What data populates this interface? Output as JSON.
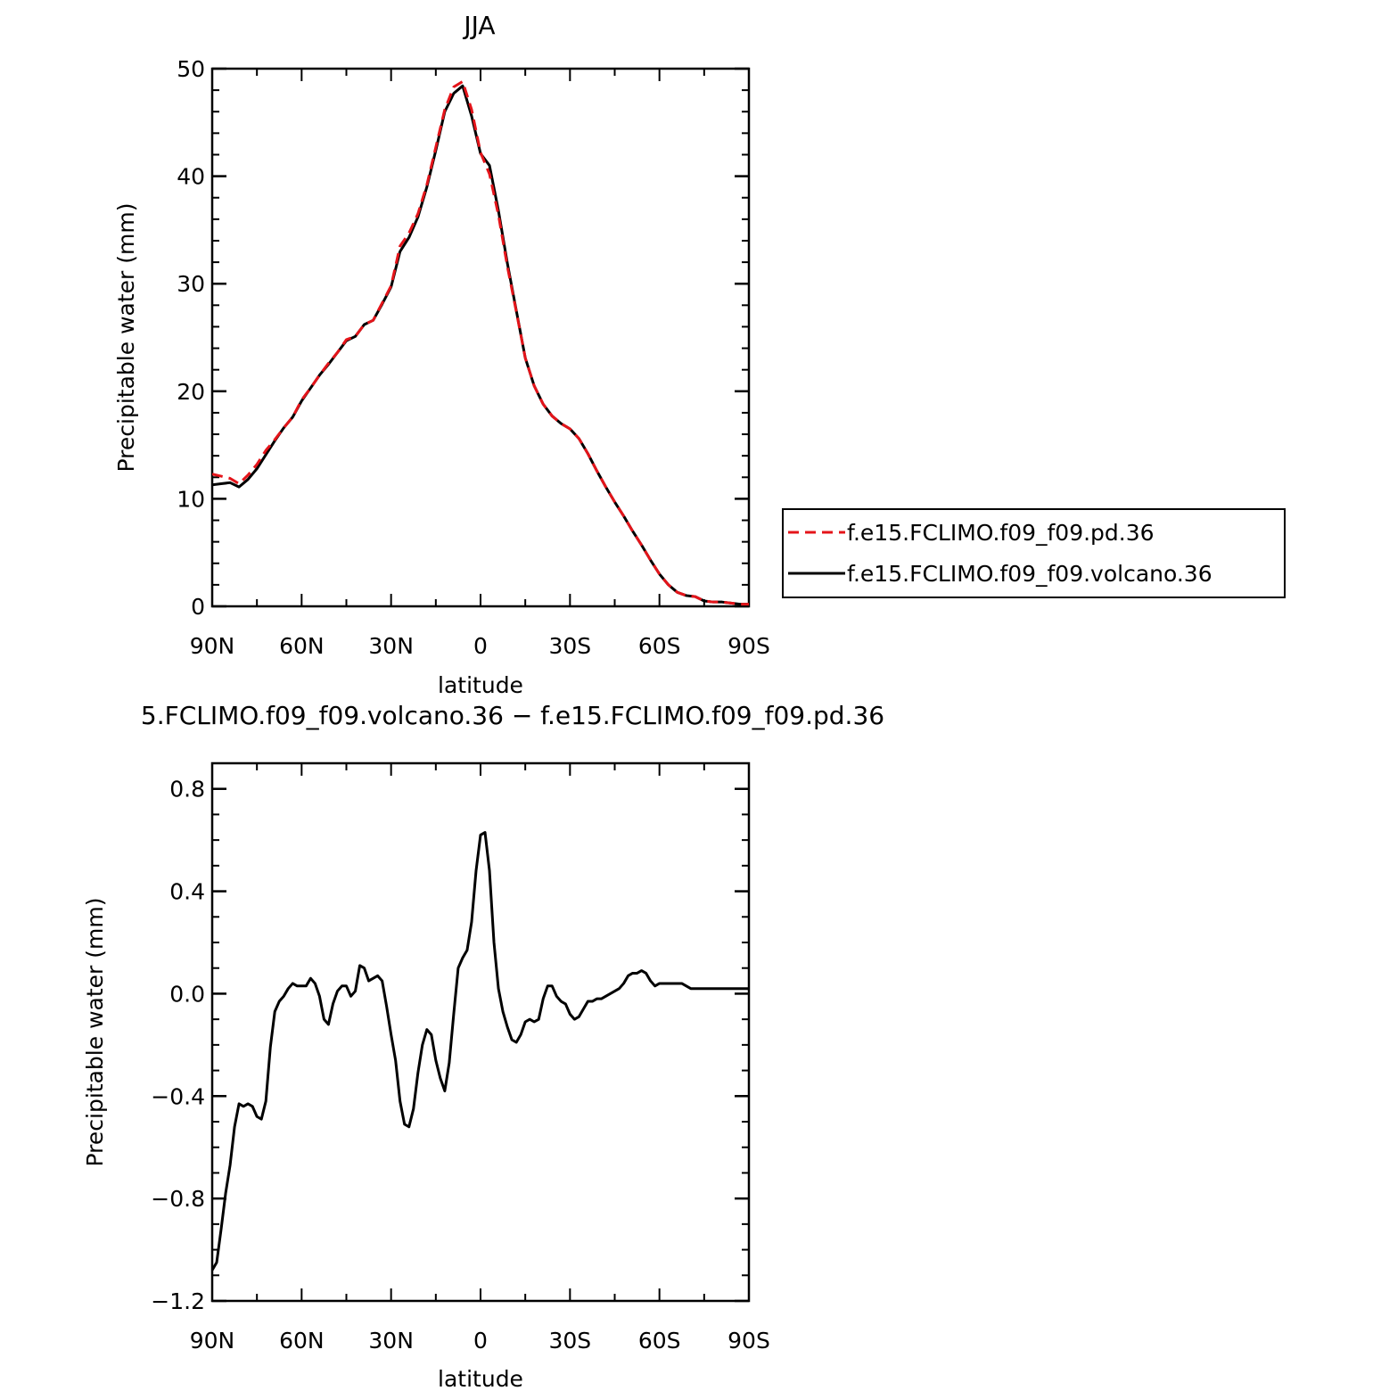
{
  "chart_data": [
    {
      "type": "line",
      "title": "JJA",
      "xlabel": "latitude",
      "ylabel": "Precipitable water (mm)",
      "xlim": [
        90,
        -90
      ],
      "ylim": [
        0,
        50
      ],
      "x_tick_values": [
        90,
        60,
        30,
        0,
        -30,
        -60,
        -90
      ],
      "x_tick_labels": [
        "90N",
        "60N",
        "30N",
        "0",
        "30S",
        "60S",
        "90S"
      ],
      "y_tick_values": [
        0,
        10,
        20,
        30,
        40,
        50
      ],
      "y_tick_labels": [
        "0",
        "10",
        "20",
        "30",
        "40",
        "50"
      ],
      "grid": false,
      "legend": {
        "position": "right-middle"
      },
      "series": [
        {
          "name": "f.e15.FCLIMO.f09_f09.pd.36",
          "color": "#e4141a",
          "style": "dashed",
          "x": [
            90,
            87,
            84,
            81,
            78,
            75,
            72,
            69,
            66,
            63,
            60,
            57,
            54,
            51,
            48,
            45,
            42,
            39,
            36,
            33,
            30,
            27,
            24,
            21,
            18,
            15,
            12,
            9,
            6,
            3,
            0,
            -3,
            -6,
            -9,
            -12,
            -15,
            -18,
            -21,
            -24,
            -27,
            -30,
            -33,
            -36,
            -39,
            -42,
            -45,
            -48,
            -51,
            -54,
            -57,
            -60,
            -63,
            -66,
            -69,
            -72,
            -75,
            -78,
            -81,
            -84,
            -87,
            -90
          ],
          "values": [
            12.3,
            12.1,
            11.9,
            11.4,
            12.2,
            13.2,
            14.5,
            15.5,
            16.6,
            17.6,
            19.2,
            20.3,
            21.5,
            22.6,
            23.6,
            24.8,
            25.1,
            26.2,
            26.6,
            28.2,
            29.8,
            33.5,
            34.7,
            36.5,
            39.2,
            42.7,
            46.2,
            48.3,
            48.8,
            46.2,
            42.2,
            40.2,
            36.4,
            31.6,
            27.4,
            23.1,
            20.5,
            18.8,
            17.7,
            17.0,
            16.5,
            15.6,
            14.2,
            12.6,
            11.1,
            9.7,
            8.4,
            7.0,
            5.7,
            4.3,
            3.0,
            2.0,
            1.3,
            1.0,
            0.9,
            0.5,
            0.4,
            0.4,
            0.3,
            0.2,
            0.2
          ]
        },
        {
          "name": "f.e15.FCLIMO.f09_f09.volcano.36",
          "color": "#000000",
          "style": "solid",
          "x": [
            90,
            87,
            84,
            81,
            78,
            75,
            72,
            69,
            66,
            63,
            60,
            57,
            54,
            51,
            48,
            45,
            42,
            39,
            36,
            33,
            30,
            27,
            24,
            21,
            18,
            15,
            12,
            9,
            6,
            3,
            0,
            -3,
            -6,
            -9,
            -12,
            -15,
            -18,
            -21,
            -24,
            -27,
            -30,
            -33,
            -36,
            -39,
            -42,
            -45,
            -48,
            -51,
            -54,
            -57,
            -60,
            -63,
            -66,
            -69,
            -72,
            -75,
            -78,
            -81,
            -84,
            -87,
            -90
          ],
          "values": [
            11.3,
            11.4,
            11.5,
            11.1,
            11.8,
            12.8,
            14.1,
            15.4,
            16.6,
            17.6,
            19.1,
            20.3,
            21.5,
            22.5,
            23.6,
            24.7,
            25.1,
            26.2,
            26.6,
            28.1,
            29.7,
            33.0,
            34.3,
            36.2,
            39.0,
            42.4,
            46.0,
            47.7,
            48.4,
            45.6,
            42.1,
            41.0,
            36.8,
            31.9,
            27.5,
            23.1,
            20.5,
            18.8,
            17.7,
            17.0,
            16.5,
            15.6,
            14.2,
            12.6,
            11.1,
            9.7,
            8.4,
            7.0,
            5.7,
            4.3,
            3.0,
            2.0,
            1.3,
            1.0,
            0.9,
            0.5,
            0.4,
            0.4,
            0.3,
            0.2,
            0.2
          ]
        }
      ]
    },
    {
      "type": "line",
      "title": "5.FCLIMO.f09_f09.volcano.36 − f.e15.FCLIMO.f09_f09.pd.36",
      "xlabel": "latitude",
      "ylabel": "Precipitable water (mm)",
      "xlim": [
        90,
        -90
      ],
      "ylim": [
        -1.2,
        0.9
      ],
      "x_tick_values": [
        90,
        60,
        30,
        0,
        -30,
        -60,
        -90
      ],
      "x_tick_labels": [
        "90N",
        "60N",
        "30N",
        "0",
        "30S",
        "60S",
        "90S"
      ],
      "y_tick_values": [
        0.8,
        0.4,
        0.0,
        -0.4,
        -0.8,
        -1.2
      ],
      "y_tick_labels": [
        "0.8",
        "0.4",
        "0.0",
        "−0.4",
        "−0.8",
        "−1.2"
      ],
      "grid": false,
      "series": [
        {
          "color": "#000000",
          "style": "solid",
          "x": [
            90,
            88.5,
            87,
            85.5,
            84,
            82.5,
            81,
            79.5,
            78,
            76.5,
            75,
            73.5,
            72,
            70.5,
            69,
            67.5,
            66,
            64.5,
            63,
            61.5,
            60,
            58.5,
            57,
            55.5,
            54,
            52.5,
            51,
            49.5,
            48,
            46.5,
            45,
            43.5,
            42,
            40.5,
            39,
            37.5,
            36,
            34.5,
            33,
            31.5,
            30,
            28.5,
            27,
            25.5,
            24,
            22.5,
            21,
            19.5,
            18,
            16.5,
            15,
            13.5,
            12,
            10.5,
            9,
            7.5,
            6,
            4.5,
            3,
            1.5,
            0,
            -1.5,
            -3,
            -4.5,
            -6,
            -7.5,
            -9,
            -10.5,
            -12,
            -13.5,
            -15,
            -16.5,
            -18,
            -19.5,
            -21,
            -22.5,
            -24,
            -25.5,
            -27,
            -28.5,
            -30,
            -31.5,
            -33,
            -34.5,
            -36,
            -37.5,
            -39,
            -40.5,
            -42,
            -43.5,
            -45,
            -46.5,
            -48,
            -49.5,
            -51,
            -52.5,
            -54,
            -55.5,
            -57,
            -58.5,
            -60,
            -61.5,
            -63,
            -64.5,
            -66,
            -67.5,
            -69,
            -70.5,
            -72,
            -73.5,
            -75,
            -76.5,
            -78,
            -79.5,
            -81,
            -82.5,
            -84,
            -85.5,
            -87,
            -88.5,
            -90
          ],
          "values": [
            -1.08,
            -1.05,
            -0.92,
            -0.78,
            -0.67,
            -0.52,
            -0.43,
            -0.44,
            -0.43,
            -0.44,
            -0.48,
            -0.49,
            -0.42,
            -0.21,
            -0.07,
            -0.03,
            -0.01,
            0.02,
            0.04,
            0.03,
            0.03,
            0.03,
            0.06,
            0.04,
            -0.01,
            -0.1,
            -0.12,
            -0.04,
            0.01,
            0.03,
            0.03,
            -0.01,
            0.01,
            0.11,
            0.1,
            0.05,
            0.06,
            0.07,
            0.05,
            -0.05,
            -0.16,
            -0.26,
            -0.42,
            -0.51,
            -0.52,
            -0.45,
            -0.31,
            -0.2,
            -0.14,
            -0.16,
            -0.26,
            -0.33,
            -0.38,
            -0.27,
            -0.08,
            0.1,
            0.14,
            0.17,
            0.28,
            0.48,
            0.62,
            0.63,
            0.48,
            0.2,
            0.02,
            -0.07,
            -0.13,
            -0.18,
            -0.19,
            -0.16,
            -0.11,
            -0.1,
            -0.11,
            -0.1,
            -0.02,
            0.03,
            0.03,
            -0.01,
            -0.03,
            -0.04,
            -0.08,
            -0.1,
            -0.09,
            -0.06,
            -0.03,
            -0.03,
            -0.02,
            -0.02,
            -0.01,
            0.0,
            0.01,
            0.02,
            0.04,
            0.07,
            0.08,
            0.08,
            0.09,
            0.08,
            0.05,
            0.03,
            0.04,
            0.04,
            0.04,
            0.04,
            0.04,
            0.04,
            0.03,
            0.02,
            0.02,
            0.02,
            0.02,
            0.02,
            0.02,
            0.02,
            0.02,
            0.02,
            0.02,
            0.02,
            0.02,
            0.02,
            0.02
          ]
        }
      ]
    }
  ]
}
